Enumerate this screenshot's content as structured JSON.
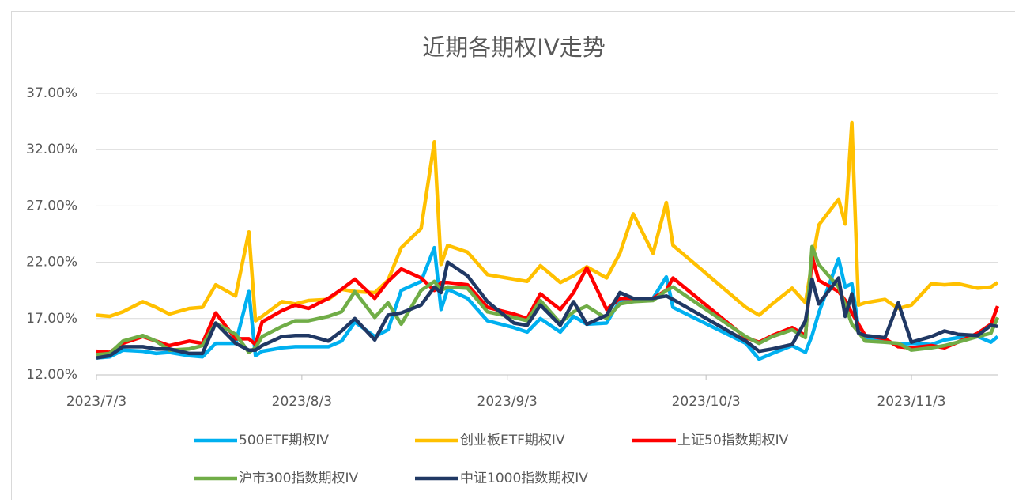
{
  "chart_data": {
    "type": "line",
    "title": "近期各期权IV走势",
    "x": [
      "2023/7/3",
      "2023/7/5",
      "2023/7/7",
      "2023/7/10",
      "2023/7/12",
      "2023/7/14",
      "2023/7/17",
      "2023/7/19",
      "2023/7/21",
      "2023/7/24",
      "2023/7/26",
      "2023/7/27",
      "2023/7/28",
      "2023/7/31",
      "2023/8/2",
      "2023/8/4",
      "2023/8/7",
      "2023/8/9",
      "2023/8/11",
      "2023/8/14",
      "2023/8/16",
      "2023/8/18",
      "2023/8/21",
      "2023/8/23",
      "2023/8/24",
      "2023/8/25",
      "2023/8/28",
      "2023/8/31",
      "2023/9/4",
      "2023/9/6",
      "2023/9/8",
      "2023/9/11",
      "2023/9/13",
      "2023/9/15",
      "2023/9/18",
      "2023/9/20",
      "2023/9/22",
      "2023/9/25",
      "2023/9/27",
      "2023/9/28",
      "2023/10/9",
      "2023/10/11",
      "2023/10/13",
      "2023/10/16",
      "2023/10/18",
      "2023/10/19",
      "2023/10/20",
      "2023/10/23",
      "2023/10/24",
      "2023/10/25",
      "2023/10/26",
      "2023/10/27",
      "2023/10/30",
      "2023/11/1",
      "2023/11/3",
      "2023/11/6",
      "2023/11/8",
      "2023/11/10",
      "2023/11/13",
      "2023/11/15",
      "2023/11/16"
    ],
    "series": [
      {
        "name": "500ETF期权IV",
        "color": "#00b0f0",
        "values": [
          13.5,
          13.6,
          14.2,
          14.1,
          13.9,
          14.0,
          13.7,
          13.6,
          14.8,
          14.8,
          19.4,
          13.7,
          14.1,
          14.4,
          14.5,
          14.5,
          14.5,
          15.0,
          16.7,
          15.4,
          16.0,
          19.5,
          20.3,
          23.3,
          17.8,
          19.6,
          18.8,
          16.8,
          16.2,
          15.8,
          17.0,
          15.8,
          17.2,
          16.5,
          16.6,
          18.6,
          18.5,
          18.8,
          20.7,
          18.0,
          14.8,
          13.4,
          13.9,
          14.6,
          14.0,
          15.5,
          17.5,
          22.3,
          19.8,
          20.1,
          16.2,
          15.2,
          15.0,
          14.7,
          14.8,
          14.7,
          15.1,
          15.3,
          15.4,
          14.9,
          15.4
        ]
      },
      {
        "name": "创业板ETF期权IV",
        "color": "#ffc000",
        "values": [
          17.3,
          17.2,
          17.6,
          18.5,
          18.0,
          17.4,
          17.9,
          18.0,
          20.0,
          19.0,
          24.7,
          16.8,
          17.2,
          18.5,
          18.3,
          18.6,
          18.7,
          19.6,
          19.4,
          19.3,
          20.4,
          23.3,
          25.0,
          32.7,
          21.8,
          23.5,
          22.9,
          20.9,
          20.5,
          20.3,
          21.7,
          20.2,
          20.8,
          21.6,
          20.6,
          22.8,
          26.3,
          22.8,
          27.3,
          23.5,
          18.0,
          17.3,
          18.3,
          19.7,
          18.4,
          22.0,
          25.3,
          27.6,
          25.4,
          34.4,
          18.2,
          18.4,
          18.7,
          17.9,
          18.2,
          20.1,
          20.0,
          20.1,
          19.7,
          19.8,
          20.2
        ]
      },
      {
        "name": "上证50指数期权IV",
        "color": "#ff0000",
        "values": [
          14.1,
          14.0,
          14.8,
          15.4,
          15.0,
          14.6,
          15.0,
          14.8,
          17.5,
          15.2,
          15.2,
          14.7,
          16.7,
          17.7,
          18.2,
          17.9,
          18.8,
          19.6,
          20.5,
          18.8,
          20.3,
          21.4,
          20.6,
          19.5,
          20.2,
          20.2,
          20.0,
          18.0,
          17.4,
          17.0,
          19.2,
          17.8,
          19.3,
          21.5,
          17.8,
          18.8,
          18.8,
          18.8,
          19.5,
          20.6,
          15.3,
          14.9,
          15.5,
          16.2,
          15.5,
          22.5,
          20.4,
          19.4,
          18.6,
          17.5,
          16.5,
          15.5,
          15.2,
          14.5,
          14.4,
          14.6,
          14.4,
          14.9,
          15.7,
          16.5,
          18.1
        ]
      },
      {
        "name": "沪市300指数期权IV",
        "color": "#70ad47",
        "values": [
          13.8,
          13.9,
          15.0,
          15.5,
          15.0,
          14.2,
          14.3,
          14.6,
          16.6,
          15.6,
          14.0,
          14.4,
          15.4,
          16.3,
          16.8,
          16.8,
          17.2,
          17.6,
          19.4,
          17.1,
          18.4,
          16.5,
          19.5,
          20.3,
          19.5,
          19.8,
          19.7,
          17.6,
          17.1,
          16.8,
          18.6,
          16.6,
          17.6,
          18.1,
          17.0,
          18.3,
          18.5,
          18.6,
          19.5,
          19.8,
          15.4,
          14.8,
          15.4,
          16.0,
          15.3,
          23.4,
          21.8,
          19.8,
          18.2,
          16.5,
          15.8,
          15.0,
          14.9,
          14.8,
          14.2,
          14.4,
          14.6,
          14.9,
          15.4,
          15.7,
          17.1
        ]
      },
      {
        "name": "中证1000指数期权IV",
        "color": "#203864",
        "values": [
          13.5,
          13.7,
          14.5,
          14.5,
          14.3,
          14.3,
          13.9,
          13.9,
          16.6,
          14.8,
          14.2,
          14.2,
          14.6,
          15.4,
          15.5,
          15.5,
          15.0,
          15.9,
          17.0,
          15.1,
          17.3,
          17.5,
          18.2,
          19.8,
          19.3,
          22.0,
          20.8,
          18.5,
          16.6,
          16.4,
          18.2,
          16.4,
          18.5,
          16.5,
          17.3,
          19.3,
          18.8,
          18.8,
          19.0,
          18.7,
          15.0,
          14.1,
          14.3,
          14.7,
          16.8,
          20.5,
          18.3,
          20.6,
          17.2,
          19.2,
          15.7,
          15.5,
          15.3,
          18.4,
          14.9,
          15.4,
          15.9,
          15.6,
          15.5,
          16.4,
          16.3
        ]
      }
    ],
    "xlim": [
      "2023/7/3",
      "2023/11/16"
    ],
    "xticks": [
      "2023/7/3",
      "2023/8/3",
      "2023/9/3",
      "2023/10/3",
      "2023/11/3"
    ],
    "ylim": [
      12,
      37
    ],
    "yticks": [
      {
        "value": 12,
        "label": "12.00%"
      },
      {
        "value": 17,
        "label": "17.00%"
      },
      {
        "value": 22,
        "label": "22.00%"
      },
      {
        "value": 27,
        "label": "27.00%"
      },
      {
        "value": 32,
        "label": "32.00%"
      },
      {
        "value": 37,
        "label": "37.00%"
      }
    ],
    "grid": true,
    "legend": "bottom"
  }
}
